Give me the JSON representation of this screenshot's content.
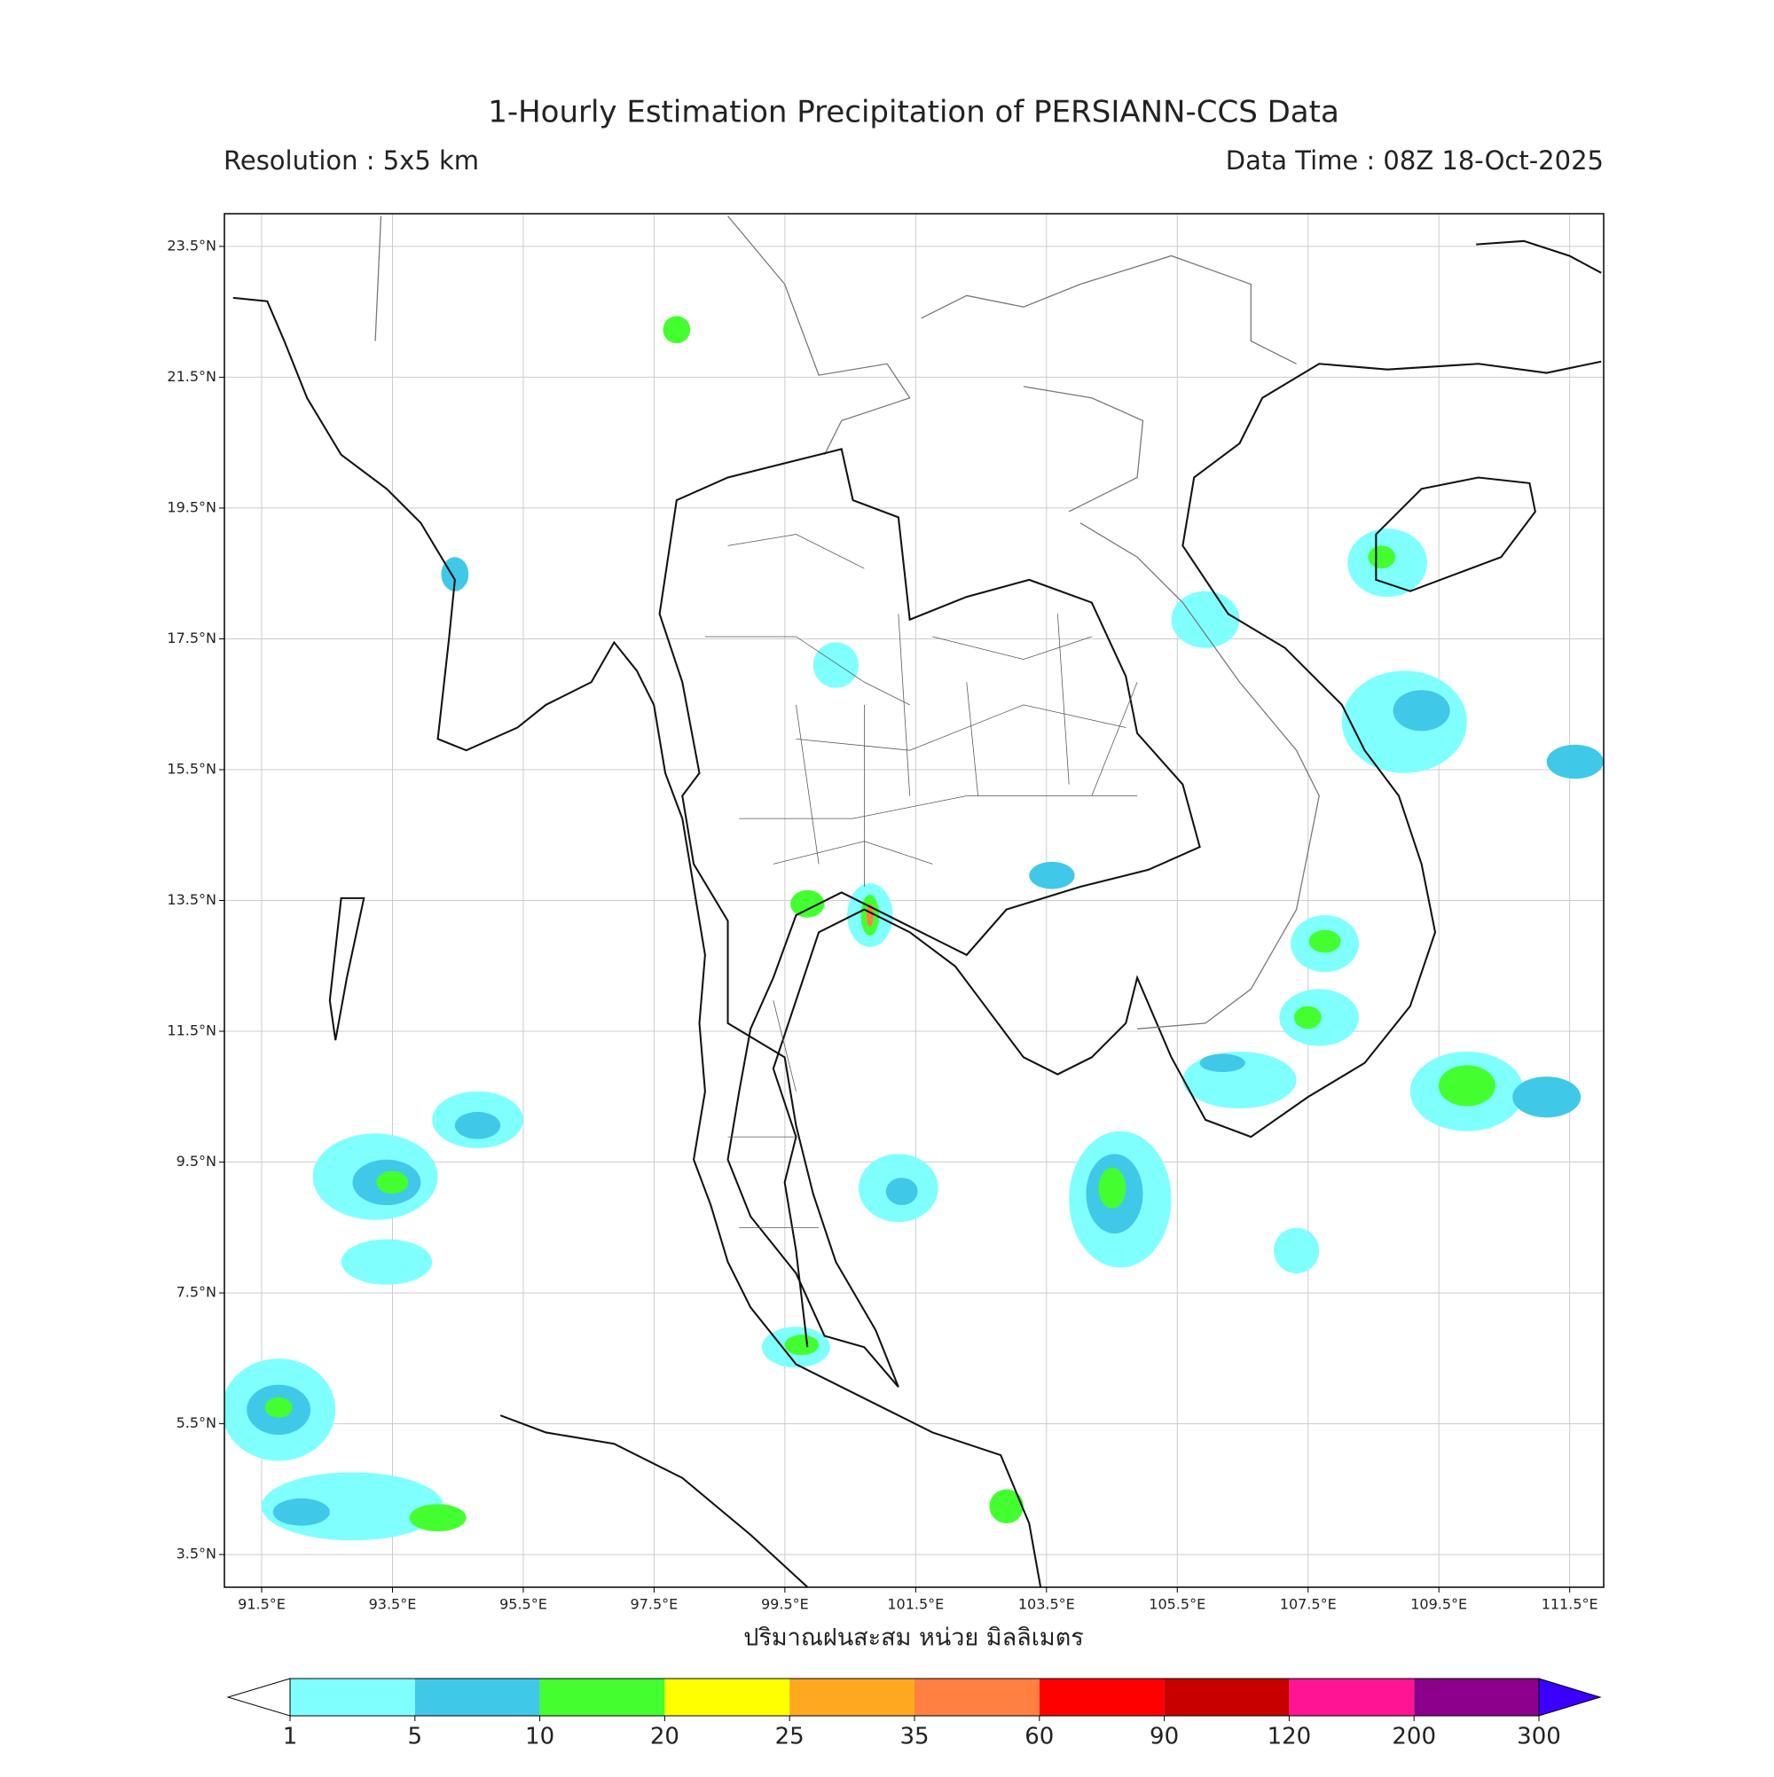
{
  "header": {
    "title": "1-Hourly Estimation Precipitation of PERSIANN-CCS Data",
    "resolution": "Resolution : 5x5 km",
    "data_time": "Data Time : 08Z 18-Oct-2025"
  },
  "map": {
    "lonlim": [
      90.93,
      112.02
    ],
    "latlim": [
      3.0,
      24.0
    ],
    "lon_ticks": [
      {
        "value": 91.5,
        "label": "91.5°E"
      },
      {
        "value": 93.5,
        "label": "93.5°E"
      },
      {
        "value": 95.5,
        "label": "95.5°E"
      },
      {
        "value": 97.5,
        "label": "97.5°E"
      },
      {
        "value": 99.5,
        "label": "99.5°E"
      },
      {
        "value": 101.5,
        "label": "101.5°E"
      },
      {
        "value": 103.5,
        "label": "103.5°E"
      },
      {
        "value": 105.5,
        "label": "105.5°E"
      },
      {
        "value": 107.5,
        "label": "107.5°E"
      },
      {
        "value": 109.5,
        "label": "109.5°E"
      },
      {
        "value": 111.5,
        "label": "111.5°E"
      }
    ],
    "lat_ticks": [
      {
        "value": 3.5,
        "label": "3.5°N"
      },
      {
        "value": 5.5,
        "label": "5.5°N"
      },
      {
        "value": 7.5,
        "label": "7.5°N"
      },
      {
        "value": 9.5,
        "label": "9.5°N"
      },
      {
        "value": 11.5,
        "label": "11.5°N"
      },
      {
        "value": 13.5,
        "label": "13.5°N"
      },
      {
        "value": 15.5,
        "label": "15.5°N"
      },
      {
        "value": 17.5,
        "label": "17.5°N"
      },
      {
        "value": 19.5,
        "label": "19.5°N"
      },
      {
        "value": 21.5,
        "label": "21.5°N"
      },
      {
        "value": 23.5,
        "label": "23.5°N"
      }
    ],
    "grid": true,
    "xlabel": "ปริมาณฝนสะสม หน่วย มิลลิเมตร"
  },
  "colorbar": {
    "levels": [
      1,
      5,
      10,
      20,
      25,
      35,
      60,
      90,
      120,
      200,
      300
    ],
    "colors": [
      "#80ffff",
      "#40c8e8",
      "#44ff30",
      "#ffff00",
      "#ffa820",
      "#ff8040",
      "#ff0000",
      "#c80000",
      "#ff1493",
      "#8b008b"
    ],
    "under_color": "#ffffff",
    "over_color": "#3a00ff"
  }
}
